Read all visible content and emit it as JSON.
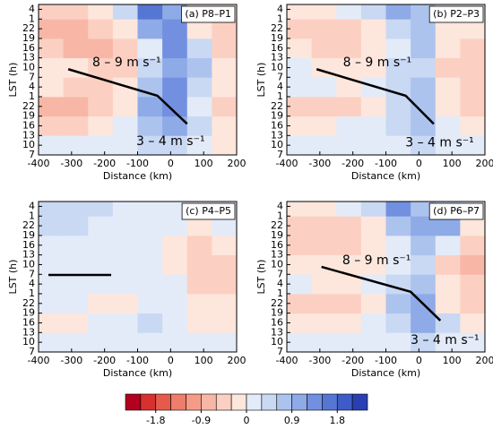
{
  "chart_data": [
    {
      "type": "heatmap",
      "title": "(a) P8–P1",
      "xlabel": "Distance (km)",
      "ylabel": "LST (h)",
      "xlim": [
        -400,
        200
      ],
      "xticks": [
        -400,
        -300,
        -200,
        -100,
        0,
        100,
        200
      ],
      "ylim": [
        0,
        46.5
      ],
      "yticks": [
        {
          "value": 0,
          "label": 7
        },
        {
          "value": 3,
          "label": 10
        },
        {
          "value": 6,
          "label": 13
        },
        {
          "value": 9,
          "label": 16
        },
        {
          "value": 12,
          "label": 19
        },
        {
          "value": 15,
          "label": 22
        },
        {
          "value": 18,
          "label": 1
        },
        {
          "value": 21,
          "label": 4
        },
        {
          "value": 24,
          "label": 7
        },
        {
          "value": 27,
          "label": 10
        },
        {
          "value": 30,
          "label": 13
        },
        {
          "value": 33,
          "label": 16
        },
        {
          "value": 36,
          "label": 19
        },
        {
          "value": 39,
          "label": 22
        },
        {
          "value": 42,
          "label": 1
        },
        {
          "value": 45,
          "label": 4
        }
      ],
      "xbins": [
        -400,
        -325,
        -250,
        -175,
        -100,
        -25,
        50,
        125,
        200
      ],
      "ybins": [
        0,
        6,
        12,
        18,
        24,
        30,
        36,
        42,
        46.5
      ],
      "z": [
        [
          0.15,
          0.15,
          0.15,
          0.15,
          0.45,
          0.45,
          0.15,
          -0.15
        ],
        [
          -0.45,
          -0.45,
          -0.15,
          0.15,
          0.75,
          1.05,
          0.45,
          -0.15
        ],
        [
          -0.75,
          -0.75,
          -0.45,
          -0.15,
          1.05,
          1.35,
          0.15,
          -0.45
        ],
        [
          -0.15,
          -0.45,
          -0.45,
          -0.15,
          0.75,
          1.35,
          0.45,
          -0.15
        ],
        [
          -0.15,
          -0.15,
          -0.45,
          -0.45,
          0.45,
          1.05,
          0.75,
          -0.15
        ],
        [
          -0.45,
          -0.75,
          -0.75,
          -0.45,
          0.15,
          1.35,
          0.45,
          -0.45
        ],
        [
          -0.75,
          -0.75,
          -0.45,
          -0.15,
          1.05,
          1.35,
          -0.15,
          -0.45
        ],
        [
          -0.45,
          -0.45,
          -0.15,
          0.45,
          1.65,
          1.05,
          -0.15,
          -0.15
        ]
      ],
      "line": {
        "x": [
          -310,
          -40,
          50
        ],
        "y": [
          26.5,
          18.3,
          9.6
        ]
      },
      "annotations": [
        {
          "text": "8 – 9 m s⁻¹",
          "x": -237,
          "y": 28.5
        },
        {
          "text": "3 – 4 m s⁻¹",
          "x": -104,
          "y": 4.2
        }
      ]
    },
    {
      "type": "heatmap",
      "title": "(b) P2–P3",
      "xlabel": "Distance (km)",
      "ylabel": "LST (h)",
      "xlim": [
        -400,
        200
      ],
      "xticks": [
        -400,
        -300,
        -200,
        -100,
        0,
        100,
        200
      ],
      "ylim": [
        0,
        46.5
      ],
      "yticks": [
        {
          "value": 0,
          "label": 7
        },
        {
          "value": 3,
          "label": 10
        },
        {
          "value": 6,
          "label": 13
        },
        {
          "value": 9,
          "label": 16
        },
        {
          "value": 12,
          "label": 19
        },
        {
          "value": 15,
          "label": 22
        },
        {
          "value": 18,
          "label": 1
        },
        {
          "value": 21,
          "label": 4
        },
        {
          "value": 24,
          "label": 7
        },
        {
          "value": 27,
          "label": 10
        },
        {
          "value": 30,
          "label": 13
        },
        {
          "value": 33,
          "label": 16
        },
        {
          "value": 36,
          "label": 19
        },
        {
          "value": 39,
          "label": 22
        },
        {
          "value": 42,
          "label": 1
        },
        {
          "value": 45,
          "label": 4
        }
      ],
      "xbins": [
        -400,
        -325,
        -250,
        -175,
        -100,
        -25,
        50,
        125,
        200
      ],
      "ybins": [
        0,
        6,
        12,
        18,
        24,
        30,
        36,
        42,
        46.5
      ],
      "z": [
        [
          0.15,
          0.15,
          0.15,
          0.15,
          0.15,
          0.45,
          0.15,
          0.15
        ],
        [
          -0.15,
          -0.15,
          0.15,
          0.15,
          0.45,
          0.75,
          0.15,
          -0.15
        ],
        [
          -0.45,
          -0.45,
          -0.45,
          -0.15,
          0.45,
          0.75,
          -0.15,
          -0.45
        ],
        [
          0.15,
          0.15,
          -0.15,
          0.15,
          0.45,
          0.75,
          -0.15,
          -0.45
        ],
        [
          0.15,
          -0.15,
          -0.15,
          -0.15,
          0.45,
          0.45,
          -0.45,
          -0.45
        ],
        [
          -0.15,
          -0.45,
          -0.45,
          -0.15,
          0.15,
          0.75,
          -0.15,
          -0.45
        ],
        [
          -0.45,
          -0.45,
          -0.45,
          -0.15,
          0.45,
          0.75,
          -0.15,
          -0.15
        ],
        [
          -0.15,
          -0.15,
          0.15,
          0.45,
          1.05,
          0.75,
          0.15,
          0.15
        ]
      ],
      "line": {
        "x": [
          -310,
          -40,
          45
        ],
        "y": [
          26.5,
          18.3,
          9.6
        ]
      },
      "annotations": [
        {
          "text": "8 – 9 m s⁻¹",
          "x": -230,
          "y": 28.5
        },
        {
          "text": "3 – 4 m s⁻¹",
          "x": -41,
          "y": 3.8
        }
      ]
    },
    {
      "type": "heatmap",
      "title": "(c) P4–P5",
      "xlabel": "Distance (km)",
      "ylabel": "LST (h)",
      "xlim": [
        -400,
        200
      ],
      "xticks": [
        -400,
        -300,
        -200,
        -100,
        0,
        100,
        200
      ],
      "ylim": [
        0,
        46.5
      ],
      "yticks": [
        {
          "value": 0,
          "label": 7
        },
        {
          "value": 3,
          "label": 10
        },
        {
          "value": 6,
          "label": 13
        },
        {
          "value": 9,
          "label": 16
        },
        {
          "value": 12,
          "label": 19
        },
        {
          "value": 15,
          "label": 22
        },
        {
          "value": 18,
          "label": 1
        },
        {
          "value": 21,
          "label": 4
        },
        {
          "value": 24,
          "label": 7
        },
        {
          "value": 27,
          "label": 10
        },
        {
          "value": 30,
          "label": 13
        },
        {
          "value": 33,
          "label": 16
        },
        {
          "value": 36,
          "label": 19
        },
        {
          "value": 39,
          "label": 22
        },
        {
          "value": 42,
          "label": 1
        },
        {
          "value": 45,
          "label": 4
        }
      ],
      "xbins": [
        -400,
        -325,
        -250,
        -175,
        -100,
        -25,
        50,
        125,
        200
      ],
      "ybins": [
        0,
        6,
        12,
        18,
        24,
        30,
        36,
        42,
        46.5
      ],
      "z": [
        [
          0.15,
          0.15,
          0.15,
          0.15,
          0.15,
          0.15,
          0.15,
          0.15
        ],
        [
          -0.15,
          -0.15,
          0.15,
          0.15,
          0.45,
          0.15,
          -0.15,
          -0.15
        ],
        [
          0.15,
          0.15,
          -0.15,
          -0.15,
          0.15,
          0.15,
          -0.15,
          -0.15
        ],
        [
          0.15,
          0.15,
          0.15,
          0.15,
          0.15,
          0.15,
          -0.45,
          -0.45
        ],
        [
          0.15,
          0.15,
          0.15,
          0.15,
          0.15,
          -0.15,
          -0.45,
          -0.45
        ],
        [
          0.15,
          0.15,
          0.15,
          0.15,
          0.15,
          -0.15,
          -0.45,
          -0.15
        ],
        [
          0.45,
          0.45,
          0.15,
          0.15,
          0.15,
          0.15,
          -0.15,
          0.15
        ],
        [
          0.45,
          0.45,
          0.45,
          0.15,
          0.15,
          0.15,
          0.15,
          0.15
        ]
      ],
      "line": {
        "x": [
          -370,
          -180
        ],
        "y": [
          23.8,
          23.8
        ]
      },
      "annotations": []
    },
    {
      "type": "heatmap",
      "title": "(d) P6–P7",
      "xlabel": "Distance (km)",
      "ylabel": "LST (h)",
      "xlim": [
        -400,
        200
      ],
      "xticks": [
        -400,
        -300,
        -200,
        -100,
        0,
        100,
        200
      ],
      "ylim": [
        0,
        46.5
      ],
      "yticks": [
        {
          "value": 0,
          "label": 7
        },
        {
          "value": 3,
          "label": 10
        },
        {
          "value": 6,
          "label": 13
        },
        {
          "value": 9,
          "label": 16
        },
        {
          "value": 12,
          "label": 19
        },
        {
          "value": 15,
          "label": 22
        },
        {
          "value": 18,
          "label": 1
        },
        {
          "value": 21,
          "label": 4
        },
        {
          "value": 24,
          "label": 7
        },
        {
          "value": 27,
          "label": 10
        },
        {
          "value": 30,
          "label": 13
        },
        {
          "value": 33,
          "label": 16
        },
        {
          "value": 36,
          "label": 19
        },
        {
          "value": 39,
          "label": 22
        },
        {
          "value": 42,
          "label": 1
        },
        {
          "value": 45,
          "label": 4
        }
      ],
      "xbins": [
        -400,
        -325,
        -250,
        -175,
        -100,
        -25,
        50,
        125,
        200
      ],
      "ybins": [
        0,
        6,
        12,
        18,
        24,
        30,
        36,
        42,
        46.5
      ],
      "z": [
        [
          0.15,
          0.15,
          0.15,
          0.15,
          0.15,
          0.45,
          0.15,
          0.15
        ],
        [
          -0.15,
          -0.15,
          -0.15,
          0.15,
          0.45,
          1.05,
          0.45,
          -0.15
        ],
        [
          -0.45,
          -0.45,
          -0.45,
          -0.15,
          0.75,
          1.05,
          -0.15,
          -0.45
        ],
        [
          0.15,
          -0.15,
          -0.15,
          0.15,
          0.45,
          0.75,
          -0.15,
          -0.45
        ],
        [
          -0.15,
          -0.15,
          -0.15,
          -0.15,
          0.15,
          0.45,
          -0.45,
          -0.75
        ],
        [
          -0.45,
          -0.45,
          -0.45,
          -0.15,
          0.15,
          0.75,
          0.15,
          -0.45
        ],
        [
          -0.45,
          -0.45,
          -0.45,
          -0.15,
          0.75,
          1.05,
          1.05,
          -0.15
        ],
        [
          -0.15,
          -0.15,
          0.15,
          0.45,
          1.35,
          0.75,
          0.45,
          0.15
        ]
      ],
      "line": {
        "x": [
          -295,
          -25,
          65
        ],
        "y": [
          26.3,
          18.6,
          9.7
        ]
      },
      "annotations": [
        {
          "text": "8 – 9 m s⁻¹",
          "x": -232,
          "y": 28.2
        },
        {
          "text": "3 – 4 m s⁻¹",
          "x": -25,
          "y": 3.6
        }
      ]
    }
  ],
  "colorbar": {
    "levels": [
      -2.1,
      -1.8,
      -1.5,
      -1.2,
      -0.9,
      -0.6,
      -0.3,
      0,
      0.3,
      0.6,
      0.9,
      1.2,
      1.5,
      1.8,
      2.1
    ],
    "colors": [
      "#b2001e",
      "#d6312f",
      "#e65a4b",
      "#ee7d6b",
      "#f49c88",
      "#f8b7a6",
      "#fbd0c2",
      "#fde6dc",
      "#e3ebf8",
      "#c9d8f3",
      "#acc3ee",
      "#8eaae7",
      "#7290df",
      "#5676d4",
      "#3d5cc7",
      "#2a3fb1"
    ],
    "ticks": [
      -1.8,
      -0.9,
      0,
      0.9,
      1.8
    ]
  }
}
